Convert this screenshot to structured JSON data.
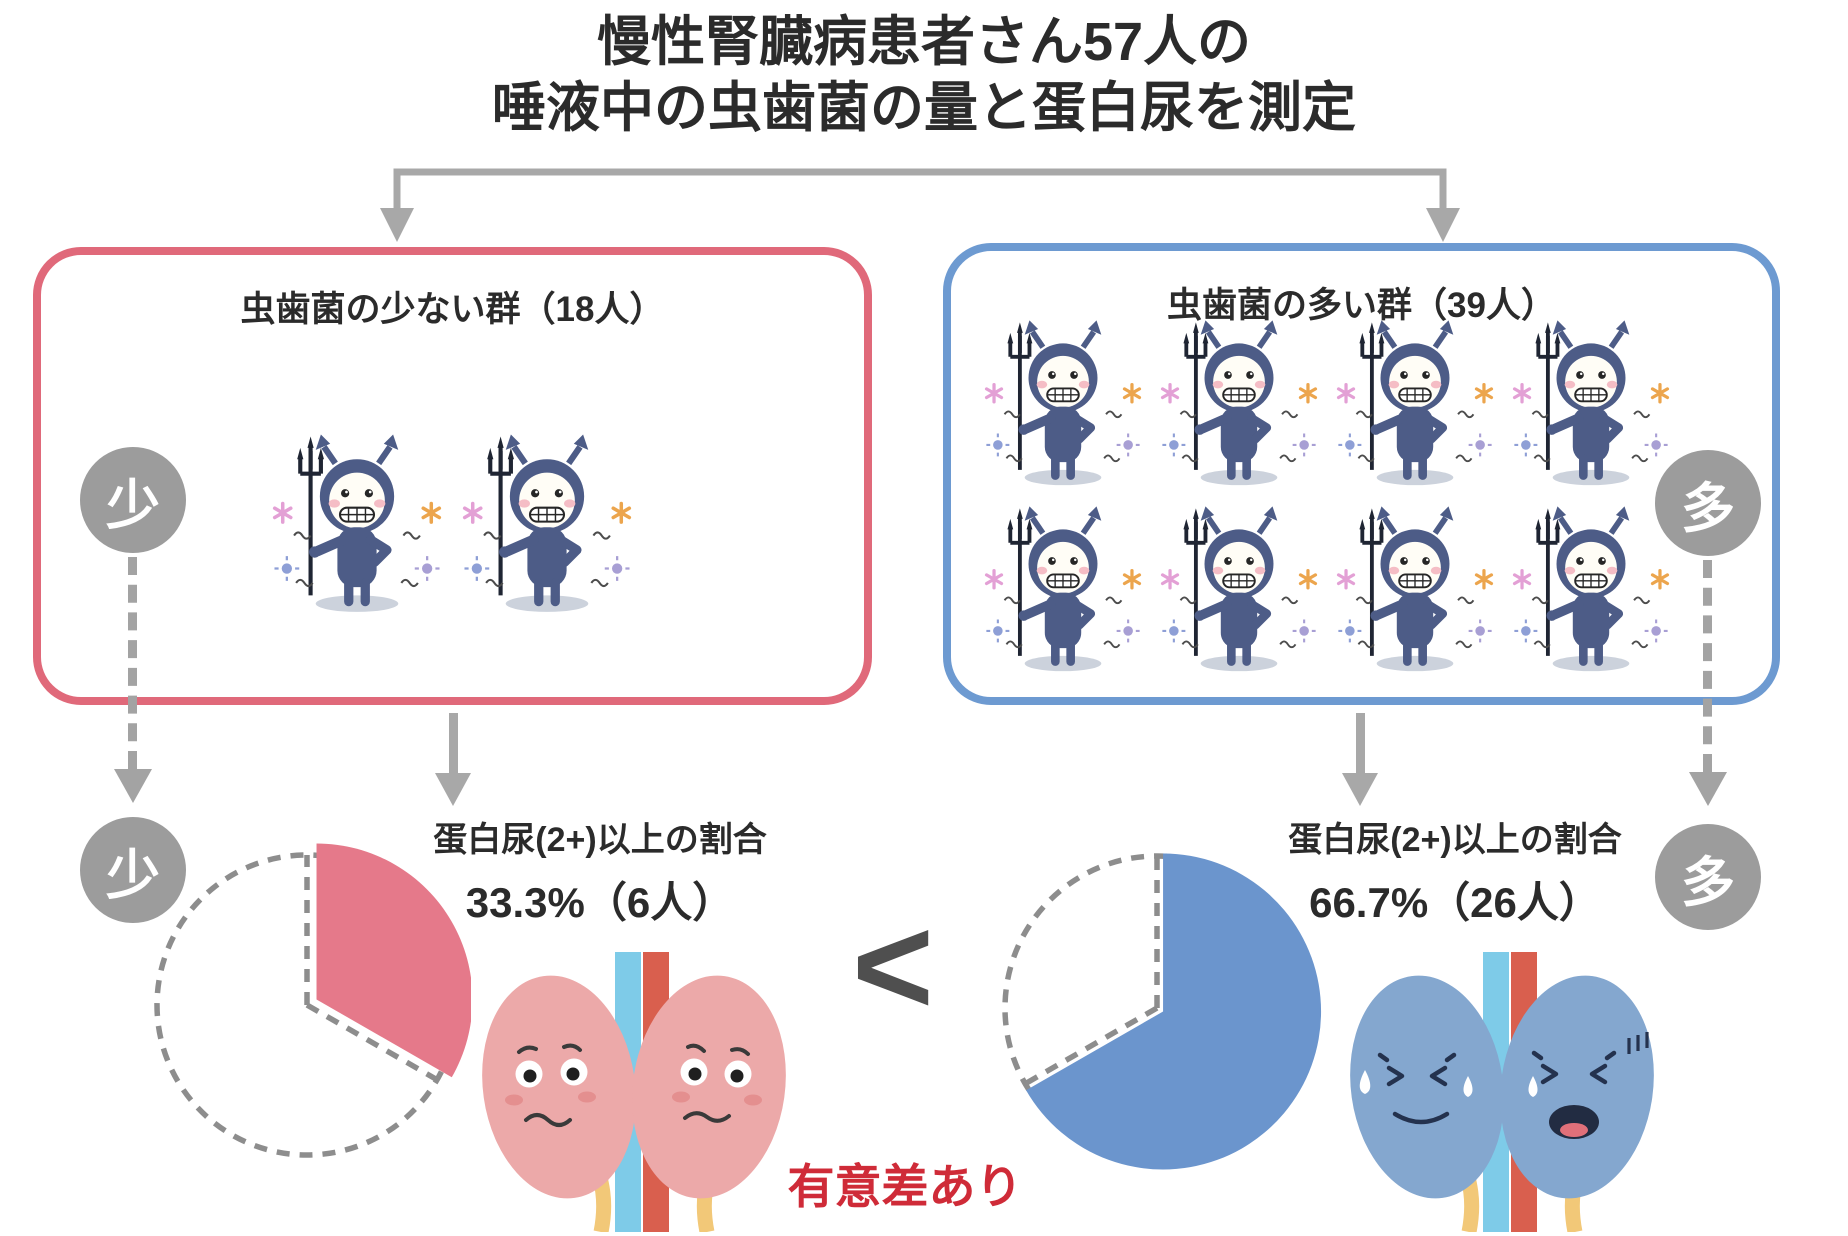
{
  "title": {
    "line1": "慢性腎臓病患者さん57人の",
    "line2": "唾液中の虫歯菌の量と蛋白尿を測定"
  },
  "groups": {
    "low": {
      "box_label": "虫歯菌の少ない群（18人）",
      "badge": "少",
      "devil_count": 2,
      "result_label": "蛋白尿(2+)以上の割合",
      "result_value": "33.3%（6人）",
      "pie": {
        "percent": 33.3,
        "slice_color": "#e5798a",
        "explode": 11
      }
    },
    "high": {
      "box_label": "虫歯菌の多い群（39人）",
      "badge": "多",
      "devil_count": 8,
      "result_label": "蛋白尿(2+)以上の割合",
      "result_value": "66.7%（26人）",
      "pie": {
        "percent": 66.7,
        "slice_color": "#6b95cd",
        "explode": 7
      }
    }
  },
  "comparison": {
    "symbol": "<",
    "annotation": "有意差あり"
  },
  "colors": {
    "low_box_border": "#e0697a",
    "high_box_border": "#6d9ad1",
    "badge_bg": "#9c9c9c",
    "arrow_gray": "#a8a8a8",
    "pie_dash": "#8d8d8d",
    "annotation_red": "#cf2b38",
    "devil_navy": "#4d5c87",
    "kidney_pink": "#eca9a9",
    "kidney_blue": "#84a7cf"
  },
  "chart_data": [
    {
      "type": "pie",
      "group": "虫歯菌の少ない群（18人）",
      "label": "蛋白尿(2+)以上の割合",
      "percent": 33.3,
      "count": 6,
      "total": 18,
      "slice_color": "#e5798a",
      "remainder_style": "dashed-outline"
    },
    {
      "type": "pie",
      "group": "虫歯菌の多い群（39人）",
      "label": "蛋白尿(2+)以上の割合",
      "percent": 66.7,
      "count": 26,
      "total": 39,
      "slice_color": "#6b95cd",
      "remainder_style": "dashed-outline"
    }
  ]
}
